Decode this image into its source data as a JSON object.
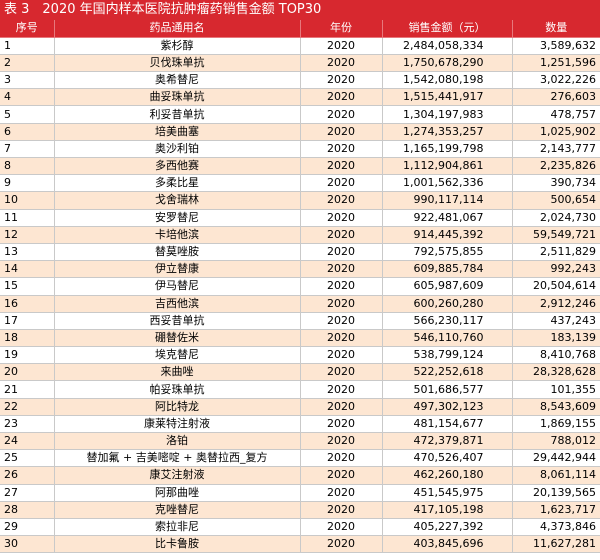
{
  "title": "表 3　2020 年国内样本医院抗肿瘤药销售金额 TOP30",
  "headers": {
    "rank": "序号",
    "name": "药品通用名",
    "year": "年份",
    "amount": "销售金额（元）",
    "quantity": "数量"
  },
  "rows": [
    {
      "rank": "1",
      "name": "紫杉醇",
      "year": "2020",
      "amount": "2,484,058,334",
      "quantity": "3,589,632"
    },
    {
      "rank": "2",
      "name": "贝伐珠单抗",
      "year": "2020",
      "amount": "1,750,678,290",
      "quantity": "1,251,596"
    },
    {
      "rank": "3",
      "name": "奥希替尼",
      "year": "2020",
      "amount": "1,542,080,198",
      "quantity": "3,022,226"
    },
    {
      "rank": "4",
      "name": "曲妥珠单抗",
      "year": "2020",
      "amount": "1,515,441,917",
      "quantity": "276,603"
    },
    {
      "rank": "5",
      "name": "利妥昔单抗",
      "year": "2020",
      "amount": "1,304,197,983",
      "quantity": "478,757"
    },
    {
      "rank": "6",
      "name": "培美曲塞",
      "year": "2020",
      "amount": "1,274,353,257",
      "quantity": "1,025,902"
    },
    {
      "rank": "7",
      "name": "奥沙利铂",
      "year": "2020",
      "amount": "1,165,199,798",
      "quantity": "2,143,777"
    },
    {
      "rank": "8",
      "name": "多西他赛",
      "year": "2020",
      "amount": "1,112,904,861",
      "quantity": "2,235,826"
    },
    {
      "rank": "9",
      "name": "多柔比星",
      "year": "2020",
      "amount": "1,001,562,336",
      "quantity": "390,734"
    },
    {
      "rank": "10",
      "name": "戈舍瑞林",
      "year": "2020",
      "amount": "990,117,114",
      "quantity": "500,654"
    },
    {
      "rank": "11",
      "name": "安罗替尼",
      "year": "2020",
      "amount": "922,481,067",
      "quantity": "2,024,730"
    },
    {
      "rank": "12",
      "name": "卡培他滨",
      "year": "2020",
      "amount": "914,445,392",
      "quantity": "59,549,721"
    },
    {
      "rank": "13",
      "name": "替莫唑胺",
      "year": "2020",
      "amount": "792,575,855",
      "quantity": "2,511,829"
    },
    {
      "rank": "14",
      "name": "伊立替康",
      "year": "2020",
      "amount": "609,885,784",
      "quantity": "992,243"
    },
    {
      "rank": "15",
      "name": "伊马替尼",
      "year": "2020",
      "amount": "605,987,609",
      "quantity": "20,504,614"
    },
    {
      "rank": "16",
      "name": "吉西他滨",
      "year": "2020",
      "amount": "600,260,280",
      "quantity": "2,912,246"
    },
    {
      "rank": "17",
      "name": "西妥昔单抗",
      "year": "2020",
      "amount": "566,230,117",
      "quantity": "437,243"
    },
    {
      "rank": "18",
      "name": "硼替佐米",
      "year": "2020",
      "amount": "546,110,760",
      "quantity": "183,139"
    },
    {
      "rank": "19",
      "name": "埃克替尼",
      "year": "2020",
      "amount": "538,799,124",
      "quantity": "8,410,768"
    },
    {
      "rank": "20",
      "name": "来曲唑",
      "year": "2020",
      "amount": "522,252,618",
      "quantity": "28,328,628"
    },
    {
      "rank": "21",
      "name": "帕妥珠单抗",
      "year": "2020",
      "amount": "501,686,577",
      "quantity": "101,355"
    },
    {
      "rank": "22",
      "name": "阿比特龙",
      "year": "2020",
      "amount": "497,302,123",
      "quantity": "8,543,609"
    },
    {
      "rank": "23",
      "name": "康莱特注射液",
      "year": "2020",
      "amount": "481,154,677",
      "quantity": "1,869,155"
    },
    {
      "rank": "24",
      "name": "洛铂",
      "year": "2020",
      "amount": "472,379,871",
      "quantity": "788,012"
    },
    {
      "rank": "25",
      "name": "替加氟 + 吉美嘧啶 + 奥替拉西_复方",
      "year": "2020",
      "amount": "470,526,407",
      "quantity": "29,442,944"
    },
    {
      "rank": "26",
      "name": "康艾注射液",
      "year": "2020",
      "amount": "462,260,180",
      "quantity": "8,061,114"
    },
    {
      "rank": "27",
      "name": "阿那曲唑",
      "year": "2020",
      "amount": "451,545,975",
      "quantity": "20,139,565"
    },
    {
      "rank": "28",
      "name": "克唑替尼",
      "year": "2020",
      "amount": "417,105,198",
      "quantity": "1,623,717"
    },
    {
      "rank": "29",
      "name": "索拉非尼",
      "year": "2020",
      "amount": "405,227,392",
      "quantity": "4,373,846"
    },
    {
      "rank": "30",
      "name": "比卡鲁胺",
      "year": "2020",
      "amount": "403,845,696",
      "quantity": "11,627,281"
    }
  ]
}
